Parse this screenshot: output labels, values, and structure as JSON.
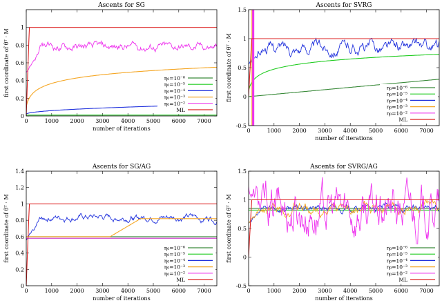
{
  "figure": {
    "caption_note": ""
  },
  "chart_data": [
    {
      "type": "line",
      "title": "Ascents for SG",
      "xlabel": "number of iterations",
      "ylabel": "first coordinate of θᵀ · M",
      "xlim": [
        0,
        7500
      ],
      "ylim": [
        0,
        1.2
      ],
      "xticks": [
        "0",
        "1000",
        "2000",
        "3000",
        "4000",
        "5000",
        "6000",
        "7000"
      ],
      "yticks": [
        "0",
        "0.2",
        "0.4",
        "0.6",
        "0.8",
        "1"
      ],
      "ytick_values": [
        0,
        0.2,
        0.4,
        0.6,
        0.8,
        1.0
      ],
      "legend_position": "bottom-right",
      "series": [
        {
          "name": "η0=10^-6",
          "label_math": "η₀=10⁻⁶",
          "color": "#3a8a3a",
          "kind": "flat",
          "value": 0.0
        },
        {
          "name": "η0=10^-5",
          "label_math": "η₀=10⁻⁵",
          "color": "#22cc22",
          "kind": "flat",
          "value": 0.01
        },
        {
          "name": "η0=10^-4",
          "label_math": "η₀=10⁻⁴",
          "color": "#2233dd",
          "kind": "sqrt",
          "start": 0.02,
          "end": 0.13
        },
        {
          "name": "η0=10^-3",
          "label_math": "η₀=10⁻³",
          "color": "#f5a623",
          "kind": "log",
          "start": 0.1,
          "end": 0.55
        },
        {
          "name": "η0=10^-2",
          "label_math": "η₀=10⁻²",
          "color": "#ee33ee",
          "kind": "noisy",
          "level": 0.78,
          "amp": 0.04,
          "start": 0.5
        },
        {
          "name": "ML",
          "label_math": "ML",
          "color": "#dd2222",
          "kind": "ml",
          "value": 1.0
        }
      ]
    },
    {
      "type": "line",
      "title": "Ascents for SVRG",
      "xlabel": "number of iterations",
      "ylabel": "first coordinate of θᵀ · M",
      "xlim": [
        0,
        7500
      ],
      "ylim": [
        -0.5,
        1.5
      ],
      "xticks": [
        "0",
        "1000",
        "2000",
        "3000",
        "4000",
        "5000",
        "6000",
        "7000"
      ],
      "yticks": [
        "-0.5",
        "0",
        "0.5",
        "1",
        "1.5"
      ],
      "ytick_values": [
        -0.5,
        0,
        0.5,
        1.0,
        1.5
      ],
      "legend_position": "bottom-right",
      "series": [
        {
          "name": "η0=10^-6",
          "label_math": "η₀=10⁻⁶",
          "color": "#3a8a3a",
          "kind": "linear",
          "start": 0.0,
          "end": 0.3
        },
        {
          "name": "η0=10^-5",
          "label_math": "η₀=10⁻⁵",
          "color": "#22cc22",
          "kind": "log",
          "start": 0.1,
          "end": 0.73
        },
        {
          "name": "η0=10^-4",
          "label_math": "η₀=10⁻⁴",
          "color": "#2233dd",
          "kind": "noisy",
          "level": 0.85,
          "amp": 0.09,
          "start": 0.55
        },
        {
          "name": "η0=10^-3",
          "label_math": "η₀=10⁻³",
          "color": "#f5a623",
          "kind": "spike",
          "value": 1.5
        },
        {
          "name": "η0=10^-2",
          "label_math": "η₀=10⁻²",
          "color": "#ee33ee",
          "kind": "spike",
          "value": 1.5
        },
        {
          "name": "ML",
          "label_math": "ML",
          "color": "#dd2222",
          "kind": "ml",
          "value": 1.0
        }
      ]
    },
    {
      "type": "line",
      "title": "Ascents for SG/AG",
      "xlabel": "number of iterations",
      "ylabel": "first coordinate of θᵀ · M",
      "xlim": [
        0,
        7500
      ],
      "ylim": [
        0,
        1.4
      ],
      "xticks": [
        "0",
        "1000",
        "2000",
        "3000",
        "4000",
        "5000",
        "6000",
        "7000"
      ],
      "yticks": [
        "0",
        "0.2",
        "0.4",
        "0.6",
        "0.8",
        "1",
        "1.2",
        "1.4"
      ],
      "ytick_values": [
        0,
        0.2,
        0.4,
        0.6,
        0.8,
        1.0,
        1.2,
        1.4
      ],
      "legend_position": "bottom-right",
      "series": [
        {
          "name": "η0=10^-6",
          "label_math": "η₀=10⁻⁶",
          "color": "#3a8a3a",
          "kind": "flat",
          "value": 0.6
        },
        {
          "name": "η0=10^-5",
          "label_math": "η₀=10⁻⁵",
          "color": "#22cc22",
          "kind": "flat",
          "value": 0.58
        },
        {
          "name": "η0=10^-4",
          "label_math": "η₀=10⁻⁴",
          "color": "#2233dd",
          "kind": "noisy",
          "level": 0.83,
          "amp": 0.035,
          "start": 0.55
        },
        {
          "name": "η0=10^-3",
          "label_math": "η₀=10⁻³",
          "color": "#f5a623",
          "kind": "step",
          "before": 0.6,
          "after": 0.82,
          "at": 3300
        },
        {
          "name": "η0=10^-2",
          "label_math": "η₀=10⁻²",
          "color": "#ee33ee",
          "kind": "flat",
          "value": 0.58
        },
        {
          "name": "ML",
          "label_math": "ML",
          "color": "#dd2222",
          "kind": "ml",
          "value": 1.0
        }
      ]
    },
    {
      "type": "line",
      "title": "Ascents for SVRG/AG",
      "xlabel": "number of iterations",
      "ylabel": "first coordinate of θᵀ · M",
      "xlim": [
        0,
        7500
      ],
      "ylim": [
        -0.5,
        1.5
      ],
      "xticks": [
        "0",
        "1000",
        "2000",
        "3000",
        "4000",
        "5000",
        "6000",
        "7000"
      ],
      "yticks": [
        "-0.5",
        "0",
        "0.5",
        "1",
        "1.5"
      ],
      "ytick_values": [
        -0.5,
        0,
        0.5,
        1.0,
        1.5
      ],
      "legend_position": "bottom-right",
      "series": [
        {
          "name": "η0=10^-6",
          "label_math": "η₀=10⁻⁶",
          "color": "#3a8a3a",
          "kind": "flat",
          "value": 0.85
        },
        {
          "name": "η0=10^-5",
          "label_math": "η₀=10⁻⁵",
          "color": "#22cc22",
          "kind": "flat",
          "value": 0.82
        },
        {
          "name": "η0=10^-4",
          "label_math": "η₀=10⁻⁴",
          "color": "#2233dd",
          "kind": "noisy",
          "level": 0.85,
          "amp": 0.05,
          "start": 0.6
        },
        {
          "name": "η0=10^-3",
          "label_math": "η₀=10⁻³",
          "color": "#f5a623",
          "kind": "noisy",
          "level": 0.84,
          "amp": 0.08,
          "start": 0.6
        },
        {
          "name": "η0=10^-2",
          "label_math": "η₀=10⁻²",
          "color": "#ee33ee",
          "kind": "noisy",
          "level": 0.82,
          "amp": 0.35,
          "start": 1.2
        },
        {
          "name": "ML",
          "label_math": "ML",
          "color": "#dd2222",
          "kind": "ml",
          "value": 1.0
        }
      ]
    }
  ]
}
